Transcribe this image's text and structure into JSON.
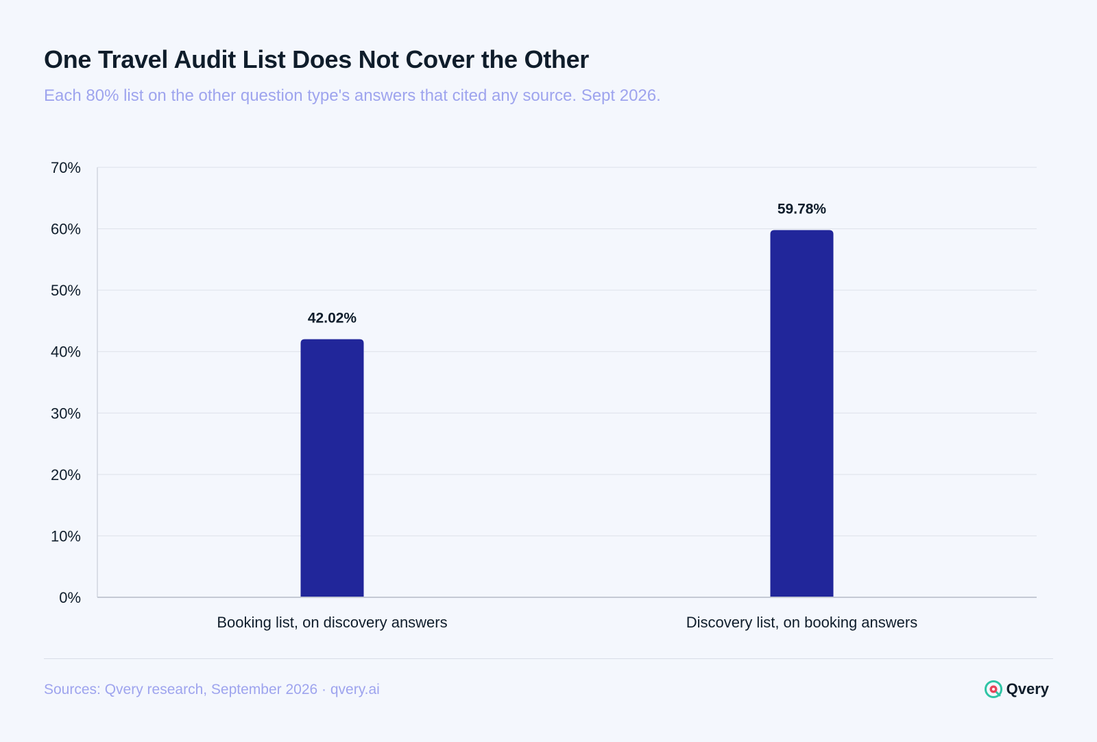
{
  "header": {
    "title": "One Travel Audit List Does Not Cover the Other",
    "subtitle": "Each 80% list on the other question type's answers that cited any source. Sept 2026."
  },
  "chart_data": {
    "type": "bar",
    "categories": [
      "Booking list, on discovery answers",
      "Discovery list, on booking answers"
    ],
    "values": [
      42.02,
      59.78
    ],
    "value_labels": [
      "42.02%",
      "59.78%"
    ],
    "ylim": [
      0,
      70
    ],
    "yticks": [
      0,
      10,
      20,
      30,
      40,
      50,
      60,
      70
    ],
    "ytick_labels": [
      "0%",
      "10%",
      "20%",
      "30%",
      "40%",
      "50%",
      "60%",
      "70%"
    ],
    "grid": true,
    "bar_color": "#21269a"
  },
  "footer": {
    "source": "Sources: Qvery research, September 2026 · qvery.ai",
    "brand": "Qvery",
    "brand_icon": "qvery-logo-icon"
  },
  "colors": {
    "background": "#f4f7fd",
    "accent": "#9ea4ee",
    "bar": "#21269a",
    "brand_green": "#2ec4a5",
    "brand_red": "#e8455a"
  }
}
